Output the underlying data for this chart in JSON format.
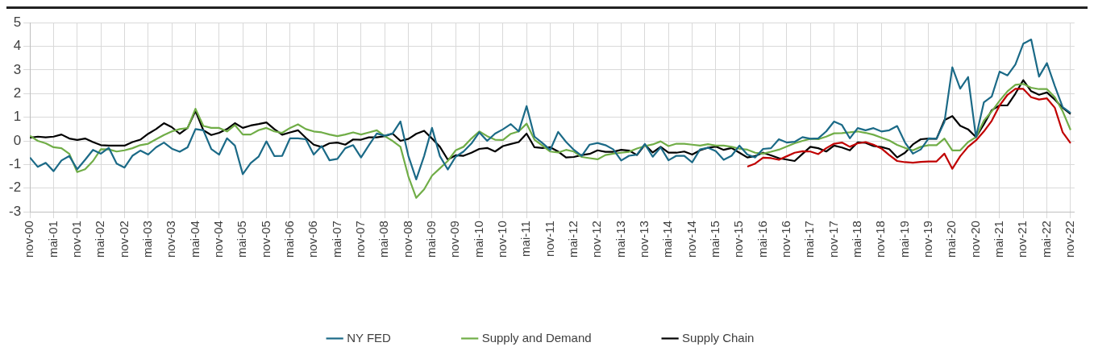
{
  "chart_data": {
    "type": "line",
    "x": [
      "2000-11",
      "2001-01",
      "2001-03",
      "2001-05",
      "2001-07",
      "2001-09",
      "2001-11",
      "2002-01",
      "2002-03",
      "2002-05",
      "2002-07",
      "2002-09",
      "2002-11",
      "2003-01",
      "2003-03",
      "2003-05",
      "2003-07",
      "2003-09",
      "2003-11",
      "2004-01",
      "2004-03",
      "2004-05",
      "2004-07",
      "2004-09",
      "2004-11",
      "2005-01",
      "2005-03",
      "2005-05",
      "2005-07",
      "2005-09",
      "2005-11",
      "2006-01",
      "2006-03",
      "2006-05",
      "2006-07",
      "2006-09",
      "2006-11",
      "2007-01",
      "2007-03",
      "2007-05",
      "2007-07",
      "2007-09",
      "2007-11",
      "2008-01",
      "2008-03",
      "2008-05",
      "2008-07",
      "2008-09",
      "2008-11",
      "2009-01",
      "2009-03",
      "2009-05",
      "2009-07",
      "2009-09",
      "2009-11",
      "2010-01",
      "2010-03",
      "2010-05",
      "2010-07",
      "2010-09",
      "2010-11",
      "2011-01",
      "2011-03",
      "2011-05",
      "2011-07",
      "2011-09",
      "2011-11",
      "2012-01",
      "2012-03",
      "2012-05",
      "2012-07",
      "2012-09",
      "2012-11",
      "2013-01",
      "2013-03",
      "2013-05",
      "2013-07",
      "2013-09",
      "2013-11",
      "2014-01",
      "2014-03",
      "2014-05",
      "2014-07",
      "2014-09",
      "2014-11",
      "2015-01",
      "2015-03",
      "2015-05",
      "2015-07",
      "2015-09",
      "2015-11",
      "2016-01",
      "2016-03",
      "2016-05",
      "2016-07",
      "2016-09",
      "2016-11",
      "2017-01",
      "2017-03",
      "2017-05",
      "2017-07",
      "2017-09",
      "2017-11",
      "2018-01",
      "2018-03",
      "2018-05",
      "2018-07",
      "2018-09",
      "2018-11",
      "2019-01",
      "2019-03",
      "2019-05",
      "2019-07",
      "2019-09",
      "2019-11",
      "2020-01",
      "2020-03",
      "2020-05",
      "2020-07",
      "2020-09",
      "2020-11",
      "2021-01",
      "2021-03",
      "2021-05",
      "2021-07",
      "2021-09",
      "2021-11",
      "2022-01",
      "2022-03",
      "2022-05",
      "2022-07",
      "2022-09",
      "2022-11"
    ],
    "series": [
      {
        "name": "NY FED",
        "color": "#1b6a87",
        "values": [
          -0.7,
          -1.1,
          -0.93,
          -1.28,
          -0.83,
          -0.64,
          -1.2,
          -0.8,
          -0.38,
          -0.54,
          -0.29,
          -0.96,
          -1.13,
          -0.63,
          -0.41,
          -0.58,
          -0.27,
          -0.07,
          -0.33,
          -0.46,
          -0.27,
          0.5,
          0.45,
          -0.34,
          -0.58,
          0.11,
          -0.2,
          -1.41,
          -0.94,
          -0.67,
          -0.02,
          -0.64,
          -0.63,
          0.11,
          0.11,
          0.07,
          -0.58,
          -0.22,
          -0.82,
          -0.76,
          -0.31,
          -0.18,
          -0.7,
          -0.18,
          0.31,
          0.22,
          0.31,
          0.82,
          -0.63,
          -1.63,
          -0.64,
          0.55,
          -0.64,
          -1.21,
          -0.67,
          -0.45,
          -0.11,
          0.36,
          0,
          0.31,
          0.49,
          0.71,
          0.4,
          1.47,
          0.18,
          -0.09,
          -0.38,
          0.38,
          -0.04,
          -0.38,
          -0.63,
          -0.16,
          -0.09,
          -0.18,
          -0.36,
          -0.83,
          -0.63,
          -0.58,
          -0.13,
          -0.67,
          -0.27,
          -0.82,
          -0.63,
          -0.63,
          -0.91,
          -0.36,
          -0.29,
          -0.43,
          -0.8,
          -0.63,
          -0.2,
          -0.58,
          -0.7,
          -0.34,
          -0.31,
          0.07,
          -0.07,
          -0.04,
          0.16,
          0.09,
          0.11,
          0.4,
          0.82,
          0.67,
          0.11,
          0.54,
          0.45,
          0.54,
          0.4,
          0.45,
          0.63,
          -0.07,
          -0.54,
          -0.36,
          0.11,
          0.09,
          0.8,
          3.11,
          2.21,
          2.7,
          0.16,
          1.63,
          1.88,
          2.93,
          2.77,
          3.23,
          4.11,
          4.29,
          2.72,
          3.29,
          2.32,
          1.43,
          1.18
        ]
      },
      {
        "color": "#c00000",
        "x": [
          "2016-01",
          "2016-03",
          "2016-05",
          "2016-07",
          "2016-09",
          "2016-11",
          "2017-01",
          "2017-03",
          "2017-05",
          "2017-07",
          "2017-09",
          "2017-11",
          "2018-01",
          "2018-03",
          "2018-05",
          "2018-07",
          "2018-09",
          "2018-11",
          "2019-01",
          "2019-03",
          "2019-05",
          "2019-07",
          "2019-09",
          "2019-11",
          "2020-01",
          "2020-03",
          "2020-05",
          "2020-07",
          "2020-09",
          "2020-11",
          "2021-01",
          "2021-03",
          "2021-05",
          "2021-07",
          "2021-09",
          "2021-11",
          "2022-01",
          "2022-03",
          "2022-05",
          "2022-07",
          "2022-09",
          "2022-11"
        ],
        "values": [
          -1.09,
          -0.96,
          -0.71,
          -0.73,
          -0.8,
          -0.65,
          -0.5,
          -0.44,
          -0.45,
          -0.56,
          -0.31,
          -0.12,
          -0.07,
          -0.25,
          -0.1,
          -0.05,
          -0.16,
          -0.32,
          -0.6,
          -0.85,
          -0.9,
          -0.92,
          -0.89,
          -0.87,
          -0.87,
          -0.54,
          -1.18,
          -0.65,
          -0.25,
          0.02,
          0.4,
          0.85,
          1.5,
          1.95,
          2.2,
          2.2,
          1.85,
          1.75,
          1.8,
          1.4,
          0.36,
          -0.1
        ]
      },
      {
        "name": "Supply and Demand",
        "color": "#70ad47",
        "values": [
          0.22,
          0,
          -0.1,
          -0.27,
          -0.31,
          -0.55,
          -1.32,
          -1.2,
          -0.85,
          -0.35,
          -0.36,
          -0.45,
          -0.4,
          -0.31,
          -0.18,
          -0.12,
          0.07,
          0.25,
          0.4,
          0.5,
          0.54,
          1.36,
          0.63,
          0.55,
          0.55,
          0.4,
          0.67,
          0.27,
          0.27,
          0.45,
          0.55,
          0.4,
          0.34,
          0.55,
          0.7,
          0.5,
          0.4,
          0.36,
          0.27,
          0.2,
          0.27,
          0.36,
          0.27,
          0.36,
          0.45,
          0.2,
          0,
          -0.25,
          -1.5,
          -2.41,
          -2.05,
          -1.47,
          -1.16,
          -0.85,
          -0.4,
          -0.25,
          0.1,
          0.4,
          0.2,
          0.05,
          0.04,
          0.3,
          0.4,
          0.73,
          0.05,
          -0.2,
          -0.45,
          -0.49,
          -0.38,
          -0.45,
          -0.68,
          -0.73,
          -0.78,
          -0.6,
          -0.54,
          -0.5,
          -0.46,
          -0.32,
          -0.22,
          -0.15,
          -0.02,
          -0.22,
          -0.12,
          -0.12,
          -0.16,
          -0.2,
          -0.14,
          -0.2,
          -0.2,
          -0.25,
          -0.33,
          -0.37,
          -0.5,
          -0.54,
          -0.46,
          -0.37,
          -0.24,
          -0.1,
          0,
          0.09,
          0.07,
          0.18,
          0.32,
          0.33,
          0.36,
          0.4,
          0.34,
          0.26,
          0.14,
          0.02,
          -0.17,
          -0.3,
          -0.4,
          -0.25,
          -0.18,
          -0.18,
          0.1,
          -0.4,
          -0.4,
          -0.05,
          0.16,
          0.85,
          1.25,
          1.7,
          2.1,
          2.37,
          2.41,
          2.25,
          2.19,
          2.19,
          1.85,
          1.25,
          0.46
        ]
      },
      {
        "name": "Supply Chain",
        "color": "#000000",
        "values": [
          0.13,
          0.18,
          0.15,
          0.18,
          0.27,
          0.1,
          0.04,
          0.1,
          -0.05,
          -0.18,
          -0.2,
          -0.2,
          -0.2,
          -0.05,
          0.05,
          0.3,
          0.5,
          0.75,
          0.58,
          0.3,
          0.55,
          1.27,
          0.45,
          0.25,
          0.34,
          0.5,
          0.75,
          0.55,
          0.65,
          0.71,
          0.78,
          0.5,
          0.26,
          0.36,
          0.45,
          0.13,
          -0.16,
          -0.26,
          -0.1,
          -0.07,
          -0.16,
          0.06,
          0.05,
          0.15,
          0.15,
          0.2,
          0.31,
          0,
          0.08,
          0.3,
          0.43,
          0.1,
          -0.25,
          -0.79,
          -0.61,
          -0.63,
          -0.5,
          -0.34,
          -0.3,
          -0.45,
          -0.22,
          -0.13,
          -0.05,
          0.31,
          -0.27,
          -0.3,
          -0.27,
          -0.45,
          -0.7,
          -0.68,
          -0.6,
          -0.55,
          -0.4,
          -0.46,
          -0.46,
          -0.38,
          -0.41,
          -0.6,
          -0.16,
          -0.49,
          -0.25,
          -0.5,
          -0.5,
          -0.45,
          -0.58,
          -0.4,
          -0.29,
          -0.24,
          -0.38,
          -0.3,
          -0.5,
          -0.7,
          -0.64,
          -0.5,
          -0.61,
          -0.73,
          -0.79,
          -0.85,
          -0.55,
          -0.25,
          -0.31,
          -0.45,
          -0.2,
          -0.28,
          -0.4,
          -0.06,
          -0.08,
          -0.22,
          -0.26,
          -0.35,
          -0.7,
          -0.5,
          -0.15,
          0.07,
          0.1,
          0.09,
          0.88,
          1.05,
          0.64,
          0.49,
          0.16,
          0.7,
          1.3,
          1.5,
          1.5,
          2,
          2.57,
          2.1,
          1.95,
          2.05,
          1.75,
          1.4,
          1.14
        ]
      }
    ],
    "xlim": [
      "2000-11",
      "2022-12"
    ],
    "xticks": [
      {
        "value": "2000-11",
        "label": "nov-00"
      },
      {
        "value": "2001-05",
        "label": "mai-01"
      },
      {
        "value": "2001-11",
        "label": "nov-01"
      },
      {
        "value": "2002-05",
        "label": "mai-02"
      },
      {
        "value": "2002-11",
        "label": "nov-02"
      },
      {
        "value": "2003-05",
        "label": "mai-03"
      },
      {
        "value": "2003-11",
        "label": "nov-03"
      },
      {
        "value": "2004-05",
        "label": "mai-04"
      },
      {
        "value": "2004-11",
        "label": "nov-04"
      },
      {
        "value": "2005-05",
        "label": "mai-05"
      },
      {
        "value": "2005-11",
        "label": "nov-05"
      },
      {
        "value": "2006-05",
        "label": "mai-06"
      },
      {
        "value": "2006-11",
        "label": "nov-06"
      },
      {
        "value": "2007-05",
        "label": "mai-07"
      },
      {
        "value": "2007-11",
        "label": "nov-07"
      },
      {
        "value": "2008-05",
        "label": "mai-08"
      },
      {
        "value": "2008-11",
        "label": "nov-08"
      },
      {
        "value": "2009-05",
        "label": "mai-09"
      },
      {
        "value": "2009-11",
        "label": "nov-09"
      },
      {
        "value": "2010-05",
        "label": "mai-10"
      },
      {
        "value": "2010-11",
        "label": "nov-10"
      },
      {
        "value": "2011-05",
        "label": "mai-11"
      },
      {
        "value": "2011-11",
        "label": "nov-11"
      },
      {
        "value": "2012-05",
        "label": "mai-12"
      },
      {
        "value": "2012-11",
        "label": "nov-12"
      },
      {
        "value": "2013-05",
        "label": "mai-13"
      },
      {
        "value": "2013-11",
        "label": "nov-13"
      },
      {
        "value": "2014-05",
        "label": "mai-14"
      },
      {
        "value": "2014-11",
        "label": "nov-14"
      },
      {
        "value": "2015-05",
        "label": "mai-15"
      },
      {
        "value": "2015-11",
        "label": "nov-15"
      },
      {
        "value": "2016-05",
        "label": "mai-16"
      },
      {
        "value": "2016-11",
        "label": "nov-16"
      },
      {
        "value": "2017-05",
        "label": "mai-17"
      },
      {
        "value": "2017-11",
        "label": "nov-17"
      },
      {
        "value": "2018-05",
        "label": "mai-18"
      },
      {
        "value": "2018-11",
        "label": "nov-18"
      },
      {
        "value": "2019-05",
        "label": "mai-19"
      },
      {
        "value": "2019-11",
        "label": "nov-19"
      },
      {
        "value": "2020-05",
        "label": "mai-20"
      },
      {
        "value": "2020-11",
        "label": "nov-20"
      },
      {
        "value": "2021-05",
        "label": "mai-21"
      },
      {
        "value": "2021-11",
        "label": "nov-21"
      },
      {
        "value": "2022-05",
        "label": "mai-22"
      },
      {
        "value": "2022-11",
        "label": "nov-22"
      }
    ],
    "ylim": [
      -3,
      5
    ],
    "yticks": [
      -3,
      -2,
      -1,
      0,
      1,
      2,
      3,
      4,
      5
    ],
    "grid": true,
    "legend": "bottom",
    "marker": "none",
    "line_style": "solid"
  }
}
